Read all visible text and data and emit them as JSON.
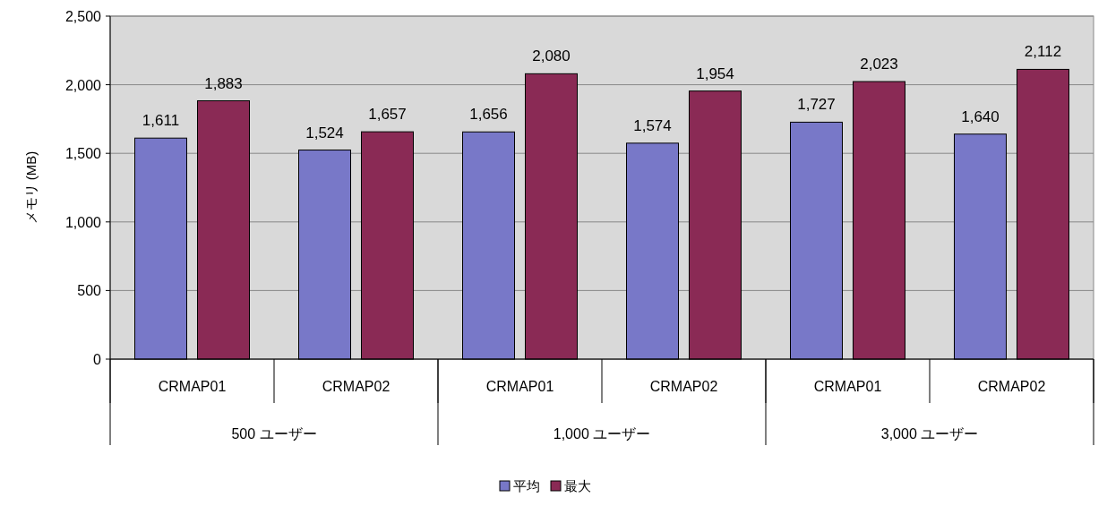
{
  "chart_data": {
    "type": "bar",
    "ylabel": "メモリ (MB)",
    "categories": [
      "CRMAP01",
      "CRMAP02",
      "CRMAP01",
      "CRMAP02",
      "CRMAP01",
      "CRMAP02"
    ],
    "annotations": [
      "500 ユーザー",
      "1,000 ユーザー",
      "3,000 ユーザー"
    ],
    "series": [
      {
        "name": "平均",
        "color": "#7878c8",
        "values": [
          1611,
          1524,
          1656,
          1574,
          1727,
          1640
        ],
        "value_labels": [
          "1,611",
          "1,524",
          "1,656",
          "1,574",
          "1,727",
          "1,640"
        ]
      },
      {
        "name": "最大",
        "color": "#8a2a55",
        "values": [
          1883,
          1657,
          2080,
          1954,
          2023,
          2112
        ],
        "value_labels": [
          "1,883",
          "1,657",
          "2,080",
          "1,954",
          "2,023",
          "2,112"
        ]
      }
    ],
    "ylim": [
      0,
      2500
    ],
    "yticks": [
      0,
      500,
      {
        "value": 1000,
        "label": "1,000"
      },
      {
        "value": 1500,
        "label": "1,500"
      },
      {
        "value": 2000,
        "label": "2,000"
      },
      {
        "value": 2500,
        "label": "2,500"
      }
    ],
    "grid": "y",
    "legend": "bottom"
  }
}
